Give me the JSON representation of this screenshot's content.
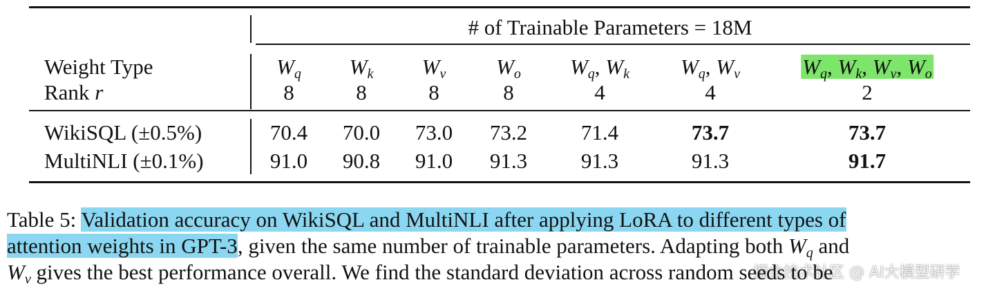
{
  "table": {
    "group_header": "# of Trainable Parameters = 18M",
    "row_label_weight": "Weight Type",
    "row_label_rank": "Rank",
    "rank_symbol": "r",
    "columns": [
      {
        "weight_type": [
          {
            "main": "W",
            "sub": "q"
          }
        ],
        "rank": "8"
      },
      {
        "weight_type": [
          {
            "main": "W",
            "sub": "k"
          }
        ],
        "rank": "8"
      },
      {
        "weight_type": [
          {
            "main": "W",
            "sub": "v"
          }
        ],
        "rank": "8"
      },
      {
        "weight_type": [
          {
            "main": "W",
            "sub": "o"
          }
        ],
        "rank": "8"
      },
      {
        "weight_type": [
          {
            "main": "W",
            "sub": "q"
          },
          {
            "text": ", "
          },
          {
            "main": "W",
            "sub": "k"
          }
        ],
        "rank": "4"
      },
      {
        "weight_type": [
          {
            "main": "W",
            "sub": "q"
          },
          {
            "text": ", "
          },
          {
            "main": "W",
            "sub": "v"
          }
        ],
        "rank": "4"
      },
      {
        "weight_type": [
          {
            "main": "W",
            "sub": "q"
          },
          {
            "text": ", "
          },
          {
            "main": "W",
            "sub": "k"
          },
          {
            "text": ", "
          },
          {
            "main": "W",
            "sub": "v"
          },
          {
            "text": ", "
          },
          {
            "main": "W",
            "sub": "o"
          }
        ],
        "rank": "2",
        "highlight": true
      }
    ],
    "rows": [
      {
        "label": "WikiSQL (±0.5%)",
        "values": [
          "70.4",
          "70.0",
          "73.0",
          "73.2",
          "71.4",
          "73.7",
          "73.7"
        ],
        "bold_columns": [
          5,
          6
        ]
      },
      {
        "label": "MultiNLI (±0.1%)",
        "values": [
          "91.0",
          "90.8",
          "91.0",
          "91.3",
          "91.3",
          "91.3",
          "91.7"
        ],
        "bold_columns": [
          6
        ]
      }
    ]
  },
  "caption": {
    "lines": [
      [
        {
          "text": "Table 5: "
        },
        {
          "text": "Validation accuracy on WikiSQL and MultiNLI after applying LoRA to different types of",
          "highlight": true
        }
      ],
      [
        {
          "text": "attention weights in GPT-3",
          "highlight": true
        },
        {
          "text": ", given the same number of trainable parameters. Adapting both "
        },
        {
          "main": "W",
          "sub": "q"
        },
        {
          "text": " and"
        }
      ],
      [
        {
          "main": "W",
          "sub": "v"
        },
        {
          "text": " gives the best performance overall. We find the standard deviation across random seeds to be"
        }
      ]
    ]
  },
  "watermark": "掘金技术社区 @ AI大模型研学"
}
